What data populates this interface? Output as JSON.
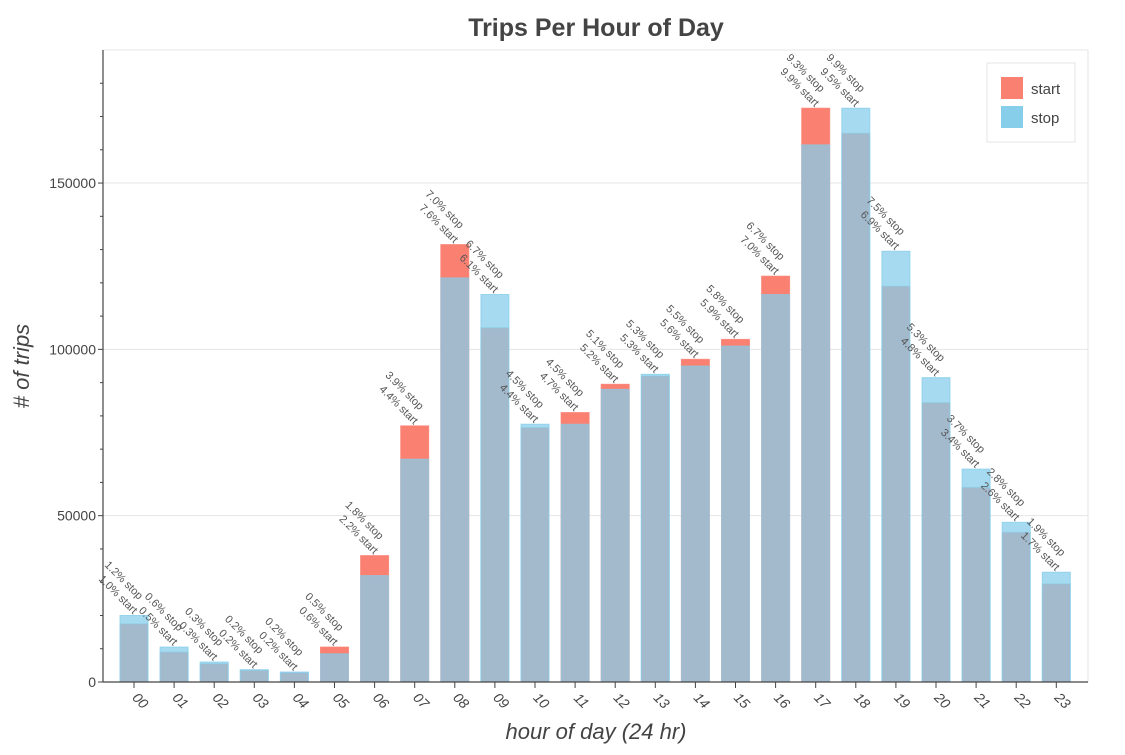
{
  "chart_data": {
    "type": "bar",
    "title": "Trips Per Hour of Day",
    "xlabel": "hour of day (24 hr)",
    "ylabel": "# of trips",
    "ylim": [
      0,
      190000
    ],
    "yticks": [
      0,
      50000,
      100000,
      150000
    ],
    "grid": true,
    "legend_position": "top-right",
    "categories": [
      "00",
      "01",
      "02",
      "03",
      "04",
      "05",
      "06",
      "07",
      "08",
      "09",
      "10",
      "11",
      "12",
      "13",
      "14",
      "15",
      "16",
      "17",
      "18",
      "19",
      "20",
      "21",
      "22",
      "23"
    ],
    "series": [
      {
        "name": "start",
        "color": "#fa8072",
        "values": [
          17500,
          9000,
          5500,
          3500,
          2800,
          10500,
          38000,
          77000,
          131500,
          106500,
          76500,
          81000,
          89500,
          92000,
          97000,
          103000,
          122000,
          172500,
          165000,
          119000,
          84000,
          58500,
          45000,
          29500
        ],
        "percent_labels": [
          "1.0% start",
          "0.5% start",
          "0.3% start",
          "0.2% start",
          "0.2% start",
          "0.6% start",
          "2.2% start",
          "4.4% start",
          "7.6% start",
          "6.1% start",
          "4.4% start",
          "4.7% start",
          "5.2% start",
          "5.3% start",
          "5.6% start",
          "5.9% start",
          "7.0% start",
          "9.9% start",
          "9.5% start",
          "6.9% start",
          "4.8% start",
          "3.4% start",
          "2.6% start",
          "1.7% start"
        ]
      },
      {
        "name": "stop",
        "color": "#87ceeb",
        "values": [
          20000,
          10500,
          6000,
          3700,
          3000,
          8500,
          32000,
          67000,
          121500,
          116500,
          77500,
          77500,
          88000,
          92500,
          95000,
          101000,
          116500,
          161500,
          172500,
          129500,
          91500,
          64000,
          48000,
          33000
        ],
        "percent_labels": [
          "1.2% stop",
          "0.6% stop",
          "0.3% stop",
          "0.2% stop",
          "0.2% stop",
          "0.5% stop",
          "1.8% stop",
          "3.9% stop",
          "7.0% stop",
          "6.7% stop",
          "4.5% stop",
          "4.5% stop",
          "5.1% stop",
          "5.3% stop",
          "5.5% stop",
          "5.8% stop",
          "6.7% stop",
          "9.3% stop",
          "9.9% stop",
          "7.5% stop",
          "5.3% stop",
          "3.7% stop",
          "2.8% stop",
          "1.9% stop"
        ]
      }
    ]
  },
  "colors": {
    "start": "#fa8072",
    "stop": "#87ceeb",
    "overlap": "#a3b9cc"
  }
}
